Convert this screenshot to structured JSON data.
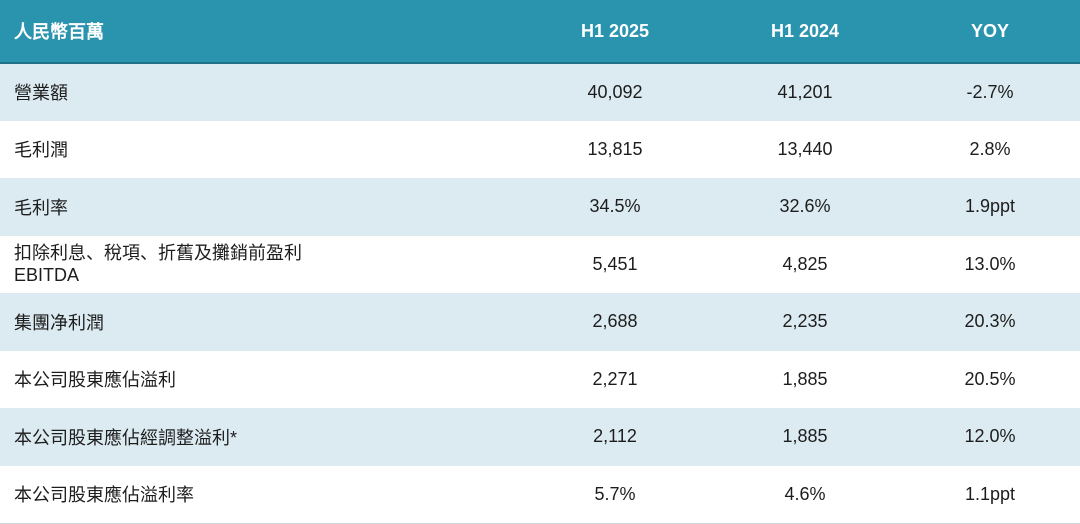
{
  "table": {
    "unit_label": "人民幣百萬",
    "columns": [
      "H1 2025",
      "H1 2024",
      "YOY"
    ],
    "rows": [
      {
        "label": "營業額",
        "h1_2025": "40,092",
        "h1_2024": "41,201",
        "yoy": "-2.7%"
      },
      {
        "label": "毛利潤",
        "h1_2025": "13,815",
        "h1_2024": "13,440",
        "yoy": "2.8%"
      },
      {
        "label": "毛利率",
        "h1_2025": "34.5%",
        "h1_2024": "32.6%",
        "yoy": "1.9ppt"
      },
      {
        "label": "扣除利息、稅項、折舊及攤銷前盈利",
        "label2": "EBITDA",
        "h1_2025": "5,451",
        "h1_2024": "4,825",
        "yoy": "13.0%"
      },
      {
        "label": "集團净利潤",
        "h1_2025": "2,688",
        "h1_2024": "2,235",
        "yoy": "20.3%"
      },
      {
        "label": "本公司股東應佔溢利",
        "h1_2025": "2,271",
        "h1_2024": "1,885",
        "yoy": "20.5%"
      },
      {
        "label": "本公司股東應佔經調整溢利*",
        "h1_2025": "2,112",
        "h1_2024": "1,885",
        "yoy": "12.0%"
      },
      {
        "label": "本公司股東應佔溢利率",
        "h1_2025": "5.7%",
        "h1_2024": "4.6%",
        "yoy": "1.1ppt"
      }
    ]
  },
  "colors": {
    "header_bg": "#2a94af",
    "header_text": "#ffffff",
    "header_border": "#20708a",
    "row_alt_bg": "#dcebf2",
    "row_plain_bg": "#ffffff",
    "cell_text": "#1d1d1d",
    "bottom_border": "#ccd7dc"
  },
  "chart_data": {
    "type": "table",
    "title": "",
    "columns": [
      "人民幣百萬",
      "H1 2025",
      "H1 2024",
      "YOY"
    ],
    "rows": [
      [
        "營業額",
        "40,092",
        "41,201",
        "-2.7%"
      ],
      [
        "毛利潤",
        "13,815",
        "13,440",
        "2.8%"
      ],
      [
        "毛利率",
        "34.5%",
        "32.6%",
        "1.9ppt"
      ],
      [
        "扣除利息、稅項、折舊及攤銷前盈利 EBITDA",
        "5,451",
        "4,825",
        "13.0%"
      ],
      [
        "集團净利潤",
        "2,688",
        "2,235",
        "20.3%"
      ],
      [
        "本公司股東應佔溢利",
        "2,271",
        "1,885",
        "20.5%"
      ],
      [
        "本公司股東應佔經調整溢利*",
        "2,112",
        "1,885",
        "12.0%"
      ],
      [
        "本公司股東應佔溢利率",
        "5.7%",
        "4.6%",
        "1.1ppt"
      ]
    ],
    "layout": {
      "header_fill": "#2a94af",
      "alternating_row_fill": "#dcebf2",
      "numeric_alignment": "center"
    }
  }
}
